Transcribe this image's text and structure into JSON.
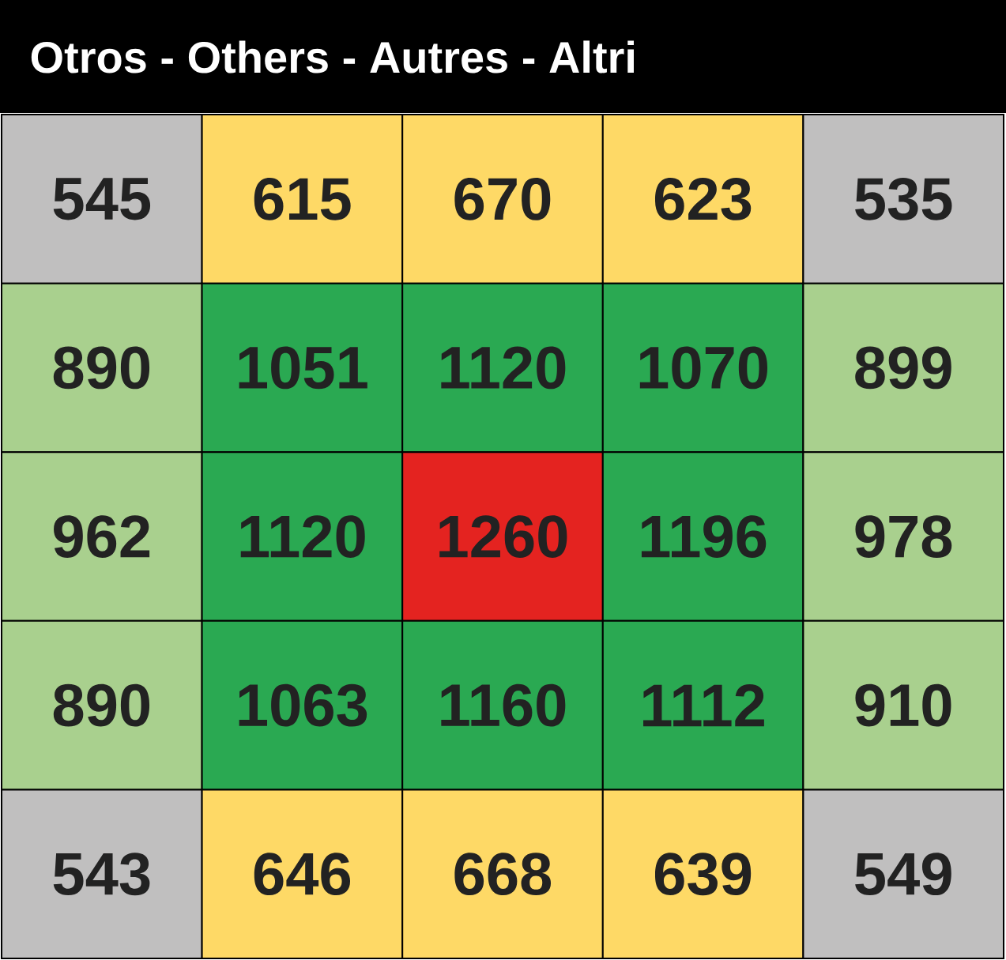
{
  "chart_data": {
    "type": "heatmap",
    "title": "Otros - Others - Autres - Altri",
    "categories": [
      null,
      null,
      null,
      null,
      null
    ],
    "y_categories": [
      null,
      null,
      null,
      null,
      null
    ],
    "cells": [
      [
        545,
        615,
        670,
        623,
        535
      ],
      [
        890,
        1051,
        1120,
        1070,
        899
      ],
      [
        962,
        1120,
        1260,
        1196,
        978
      ],
      [
        890,
        1063,
        1160,
        1112,
        910
      ],
      [
        543,
        646,
        668,
        639,
        549
      ]
    ],
    "colors": [
      [
        "#c0bfbf",
        "#fed966",
        "#fed966",
        "#fed966",
        "#c0bfbf"
      ],
      [
        "#a9d08e",
        "#2aa952",
        "#2aa952",
        "#2aa952",
        "#a9d08e"
      ],
      [
        "#a9d08e",
        "#2aa952",
        "#e42320",
        "#2aa952",
        "#a9d08e"
      ],
      [
        "#a9d08e",
        "#2aa952",
        "#2aa952",
        "#2aa952",
        "#a9d08e"
      ],
      [
        "#c0bfbf",
        "#fed966",
        "#fed966",
        "#fed966",
        "#c0bfbf"
      ]
    ],
    "data_labels": true
  }
}
